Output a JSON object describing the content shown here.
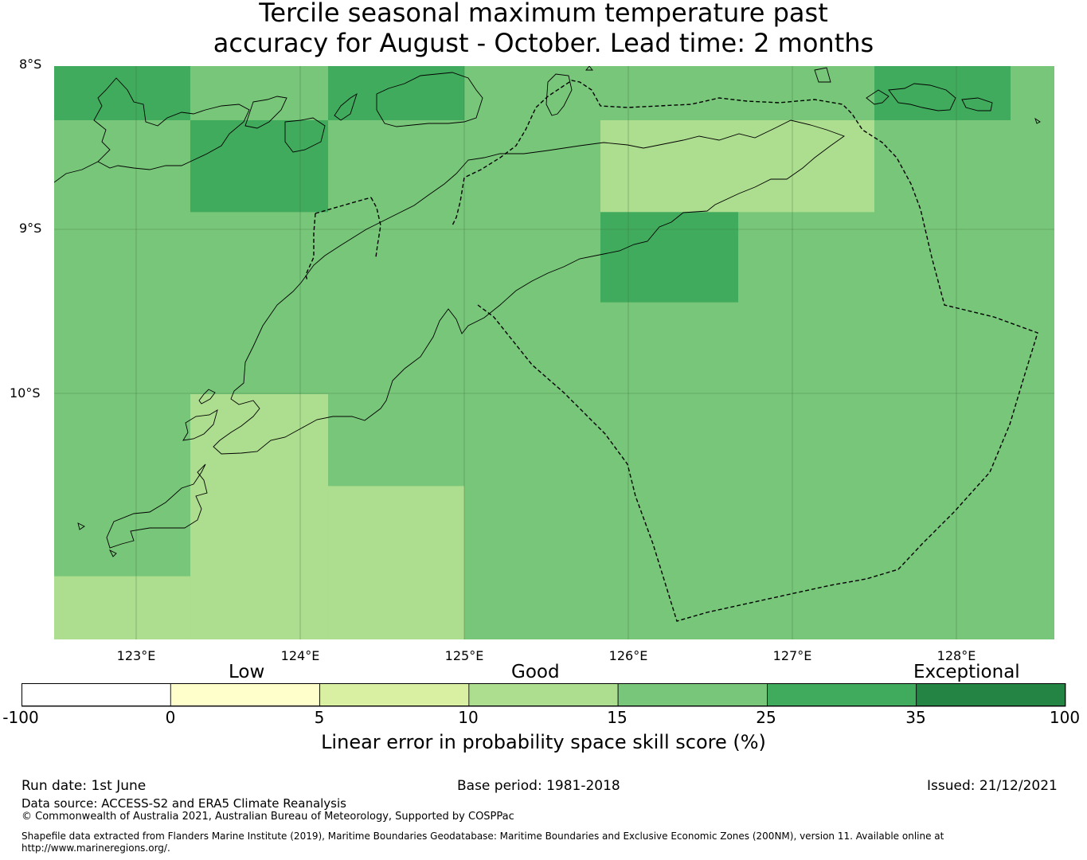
{
  "title": {
    "line1": "Tercile seasonal maximum temperature past",
    "line2": "accuracy for August - October. Lead time: 2 months"
  },
  "map": {
    "lat_labels": [
      "8°S",
      "9°S",
      "10°S"
    ],
    "lon_labels": [
      "123°E",
      "124°E",
      "125°E",
      "126°E",
      "127°E",
      "128°E"
    ],
    "background_category": "15-25",
    "cells": [
      {
        "lon": [
          122.5,
          123.33
        ],
        "lat": [
          -8.0,
          -8.33
        ],
        "category": "25-35"
      },
      {
        "lon": [
          124.17,
          125.0
        ],
        "lat": [
          -8.0,
          -8.33
        ],
        "category": "25-35"
      },
      {
        "lon": [
          127.5,
          128.33
        ],
        "lat": [
          -8.0,
          -8.33
        ],
        "category": "25-35"
      },
      {
        "lon": [
          123.33,
          124.17
        ],
        "lat": [
          -8.33,
          -8.89
        ],
        "category": "25-35"
      },
      {
        "lon": [
          125.83,
          127.5
        ],
        "lat": [
          -8.33,
          -8.89
        ],
        "category": "10-15"
      },
      {
        "lon": [
          125.83,
          126.67
        ],
        "lat": [
          -8.89,
          -9.44
        ],
        "category": "25-35"
      },
      {
        "lon": [
          123.33,
          124.17
        ],
        "lat": [
          -10.0,
          -11.5
        ],
        "category": "10-15"
      },
      {
        "lon": [
          124.17,
          125.0
        ],
        "lat": [
          -10.56,
          -11.5
        ],
        "category": "10-15"
      },
      {
        "lon": [
          122.5,
          123.33
        ],
        "lat": [
          -11.11,
          -11.5
        ],
        "category": "10-15"
      }
    ]
  },
  "legend": {
    "categories": [
      "Low",
      "Good",
      "Exceptional"
    ],
    "ticks": [
      "-100",
      "0",
      "5",
      "10",
      "15",
      "25",
      "35",
      "100"
    ],
    "colors": [
      "#ffffff",
      "#ffffcc",
      "#d9f0a3",
      "#addd8e",
      "#78c679",
      "#41ab5d",
      "#238443"
    ],
    "title": "Linear error in probability space skill score (%)"
  },
  "footer": {
    "run_date": "Run date: 1st June",
    "base_period": "Base period: 1981-2018",
    "issued": "Issued: 21/12/2021",
    "data_source": "Data source: ACCESS-S2 and ERA5 Climate Reanalysis",
    "copyright": "© Commonwealth of Australia 2021, Australian Bureau of Meteorology, Supported by COSPPac",
    "shapefile": "Shapefile data extracted from Flanders Marine Institute (2019), Maritime Boundaries Geodatabase: Maritime Boundaries and Exclusive Economic Zones (200NM), version 11. Available online at http://www.marineregions.org/."
  }
}
